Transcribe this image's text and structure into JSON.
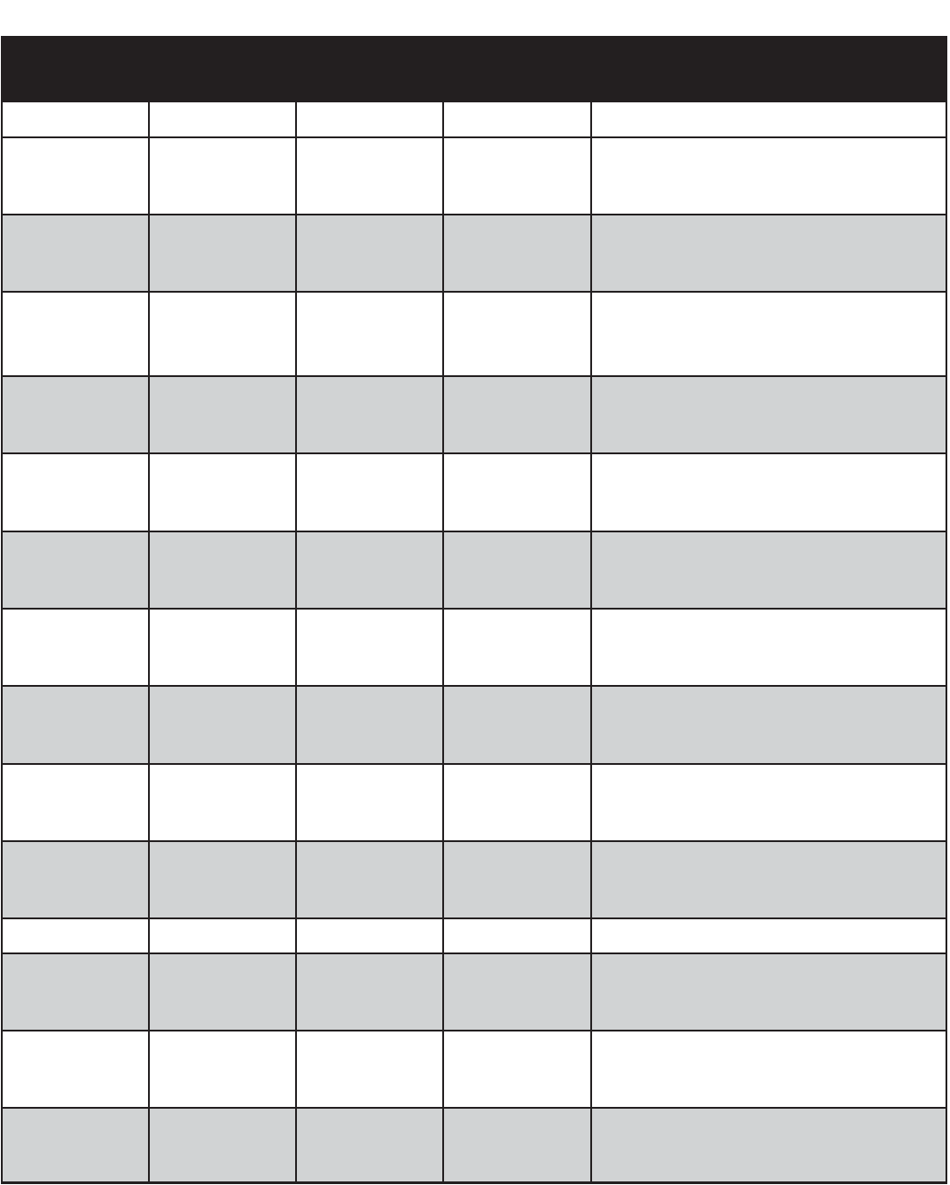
{
  "colors": {
    "header": "#231f20",
    "shade_white": "#ffffff",
    "shade_gray": "#d1d3d4",
    "border": "#231f20"
  },
  "table": {
    "header": "",
    "rows": [
      {
        "shade": "white",
        "cells": [
          "",
          "",
          "",
          "",
          ""
        ]
      },
      {
        "shade": "white",
        "cells": [
          "",
          "",
          "",
          "",
          ""
        ]
      },
      {
        "shade": "gray",
        "cells": [
          "",
          "",
          "",
          "",
          ""
        ]
      },
      {
        "shade": "white",
        "cells": [
          "",
          "",
          "",
          "",
          ""
        ]
      },
      {
        "shade": "gray",
        "cells": [
          "",
          "",
          "",
          "",
          ""
        ]
      },
      {
        "shade": "white",
        "cells": [
          "",
          "",
          "",
          "",
          ""
        ]
      },
      {
        "shade": "gray",
        "cells": [
          "",
          "",
          "",
          "",
          ""
        ]
      },
      {
        "shade": "white",
        "cells": [
          "",
          "",
          "",
          "",
          ""
        ]
      },
      {
        "shade": "gray",
        "cells": [
          "",
          "",
          "",
          "",
          ""
        ]
      },
      {
        "shade": "white",
        "cells": [
          "",
          "",
          "",
          "",
          ""
        ]
      },
      {
        "shade": "gray",
        "cells": [
          "",
          "",
          "",
          "",
          ""
        ]
      },
      {
        "shade": "white",
        "cells": [
          "",
          "",
          "",
          "",
          ""
        ]
      },
      {
        "shade": "gray",
        "cells": [
          "",
          "",
          "",
          "",
          ""
        ]
      },
      {
        "shade": "white",
        "cells": [
          "",
          "",
          "",
          "",
          ""
        ]
      },
      {
        "shade": "gray",
        "cells": [
          "",
          "",
          "",
          "",
          ""
        ]
      }
    ]
  }
}
